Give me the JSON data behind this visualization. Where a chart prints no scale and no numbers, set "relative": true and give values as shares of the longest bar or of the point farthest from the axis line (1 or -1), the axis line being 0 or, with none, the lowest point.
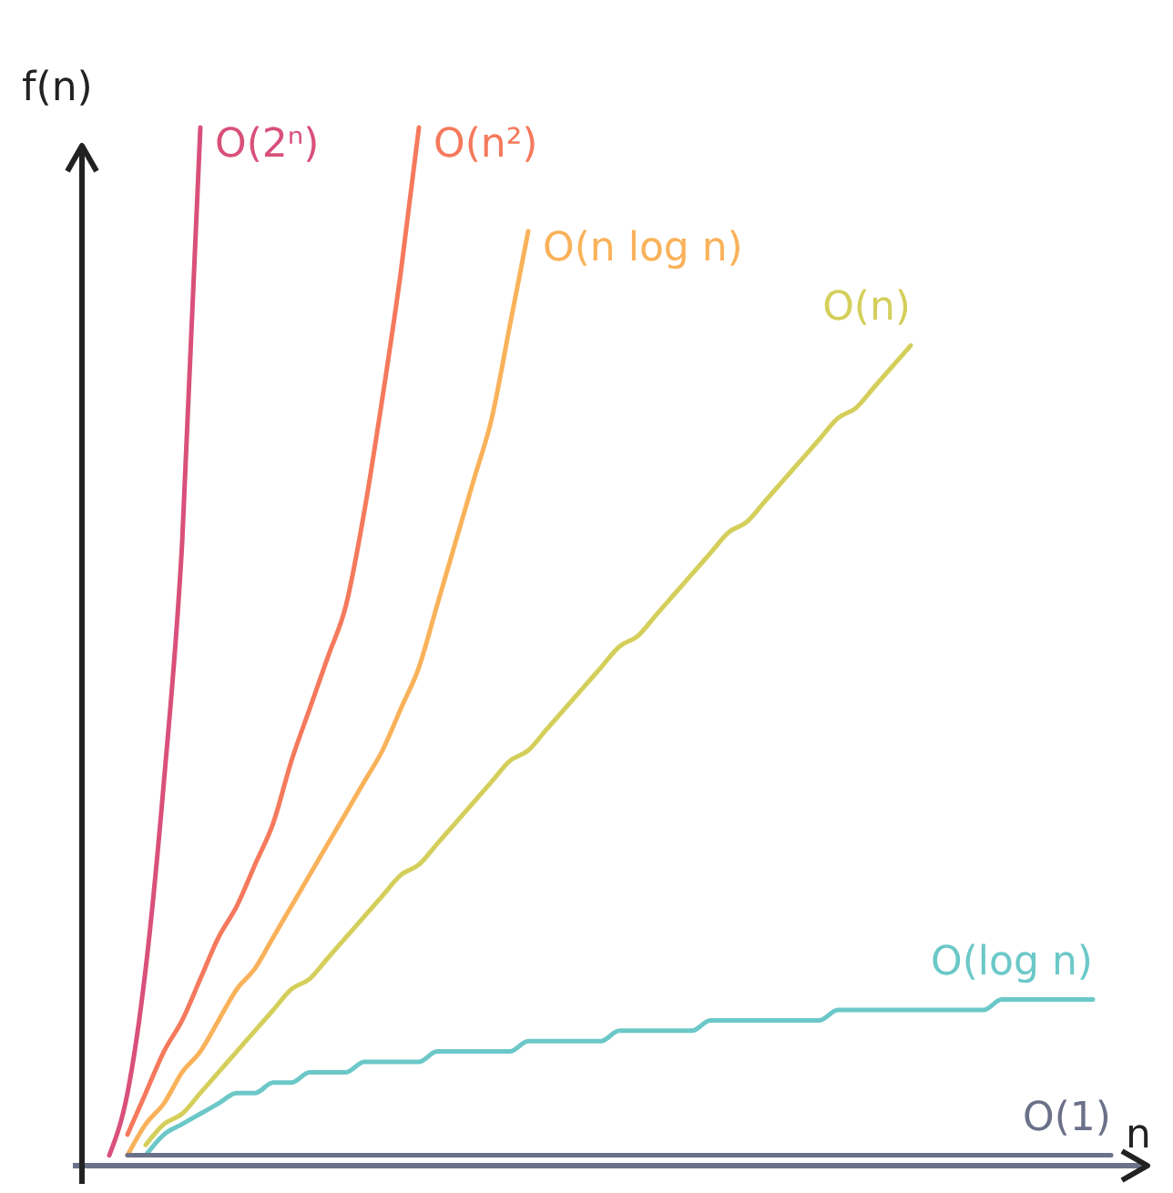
{
  "chart_data": {
    "type": "line",
    "relative": true,
    "xlabel": "n",
    "ylabel": "f(n)",
    "categories": [
      null,
      null,
      null,
      null,
      null,
      null,
      null,
      null,
      null,
      null,
      null,
      null,
      null,
      null,
      null,
      null,
      null,
      null,
      null,
      null,
      null,
      null,
      null,
      null,
      null,
      null,
      null,
      null,
      null,
      null,
      null,
      null,
      null,
      null,
      null,
      null,
      null,
      null,
      null,
      null,
      null,
      null,
      null,
      null,
      null,
      null,
      null,
      null,
      null,
      null,
      null,
      null,
      null,
      null,
      null,
      null,
      null
    ],
    "series": [
      {
        "name": "O(2ⁿ)",
        "color": "#d9507a",
        "values": [
          0.01,
          0.07,
          0.19,
          0.37,
          0.6,
          1.0,
          null,
          null,
          null,
          null,
          null,
          null,
          null,
          null,
          null,
          null,
          null,
          null,
          null,
          null,
          null,
          null,
          null,
          null,
          null,
          null,
          null,
          null,
          null,
          null,
          null,
          null,
          null,
          null,
          null,
          null,
          null,
          null,
          null,
          null,
          null,
          null,
          null,
          null,
          null,
          null,
          null,
          null,
          null,
          null,
          null,
          null,
          null,
          null,
          null,
          null,
          null
        ]
      },
      {
        "name": "O(n²)",
        "color": "#f5795c",
        "values": [
          null,
          0.03,
          0.07,
          0.11,
          0.14,
          0.18,
          0.22,
          0.25,
          0.29,
          0.33,
          0.39,
          0.44,
          0.49,
          0.54,
          0.63,
          0.74,
          0.86,
          1.0,
          null,
          null,
          null,
          null,
          null,
          null,
          null,
          null,
          null,
          null,
          null,
          null,
          null,
          null,
          null,
          null,
          null,
          null,
          null,
          null,
          null,
          null,
          null,
          null,
          null,
          null,
          null,
          null,
          null,
          null,
          null,
          null,
          null,
          null,
          null,
          null,
          null,
          null,
          null
        ]
      },
      {
        "name": "O(n log n)",
        "color": "#f9b25a",
        "values": [
          null,
          0.01,
          0.04,
          0.06,
          0.09,
          0.11,
          0.14,
          0.17,
          0.19,
          0.22,
          0.25,
          0.28,
          0.31,
          0.34,
          0.37,
          0.4,
          0.44,
          0.48,
          0.54,
          0.6,
          0.66,
          0.72,
          0.81,
          0.9,
          null,
          null,
          null,
          null,
          null,
          null,
          null,
          null,
          null,
          null,
          null,
          null,
          null,
          null,
          null,
          null,
          null,
          null,
          null,
          null,
          null,
          null,
          null,
          null,
          null,
          null,
          null,
          null,
          null,
          null,
          null,
          null,
          null
        ]
      },
      {
        "name": "O(n)",
        "color": "#d4cf5a",
        "values": [
          null,
          null,
          0.02,
          0.04,
          0.05,
          0.07,
          0.09,
          0.11,
          0.13,
          0.15,
          0.17,
          0.18,
          0.2,
          0.22,
          0.24,
          0.26,
          0.28,
          0.29,
          0.31,
          0.33,
          0.35,
          0.37,
          0.39,
          0.4,
          0.42,
          0.44,
          0.46,
          0.48,
          0.5,
          0.51,
          0.53,
          0.55,
          0.57,
          0.59,
          0.61,
          0.62,
          0.64,
          0.66,
          0.68,
          0.7,
          0.72,
          0.73,
          0.75,
          0.77,
          0.79,
          null,
          null,
          null,
          null,
          null,
          null,
          null,
          null,
          null,
          null,
          null,
          null
        ]
      },
      {
        "name": "O(log n)",
        "color": "#6cc8c8",
        "values": [
          null,
          null,
          0.01,
          0.03,
          0.04,
          0.05,
          0.06,
          0.07,
          0.07,
          0.08,
          0.08,
          0.09,
          0.09,
          0.09,
          0.1,
          0.1,
          0.1,
          0.1,
          0.11,
          0.11,
          0.11,
          0.11,
          0.11,
          0.12,
          0.12,
          0.12,
          0.12,
          0.12,
          0.13,
          0.13,
          0.13,
          0.13,
          0.13,
          0.14,
          0.14,
          0.14,
          0.14,
          0.14,
          0.14,
          0.14,
          0.15,
          0.15,
          0.15,
          0.15,
          0.15,
          0.15,
          0.15,
          0.15,
          0.15,
          0.16,
          0.16,
          0.16,
          0.16,
          0.16,
          0.16,
          null,
          null
        ]
      },
      {
        "name": "O(1)",
        "color": "#6b7189",
        "values": [
          null,
          0.01,
          0.01,
          0.01,
          0.01,
          0.01,
          0.01,
          0.01,
          0.01,
          0.01,
          0.01,
          0.01,
          0.01,
          0.01,
          0.01,
          0.01,
          0.01,
          0.01,
          0.01,
          0.01,
          0.01,
          0.01,
          0.01,
          0.01,
          0.01,
          0.01,
          0.01,
          0.01,
          0.01,
          0.01,
          0.01,
          0.01,
          0.01,
          0.01,
          0.01,
          0.01,
          0.01,
          0.01,
          0.01,
          0.01,
          0.01,
          0.01,
          0.01,
          0.01,
          0.01,
          0.01,
          0.01,
          0.01,
          0.01,
          0.01,
          0.01,
          0.01,
          0.01,
          0.01,
          0.01,
          0.01,
          null
        ]
      }
    ]
  }
}
